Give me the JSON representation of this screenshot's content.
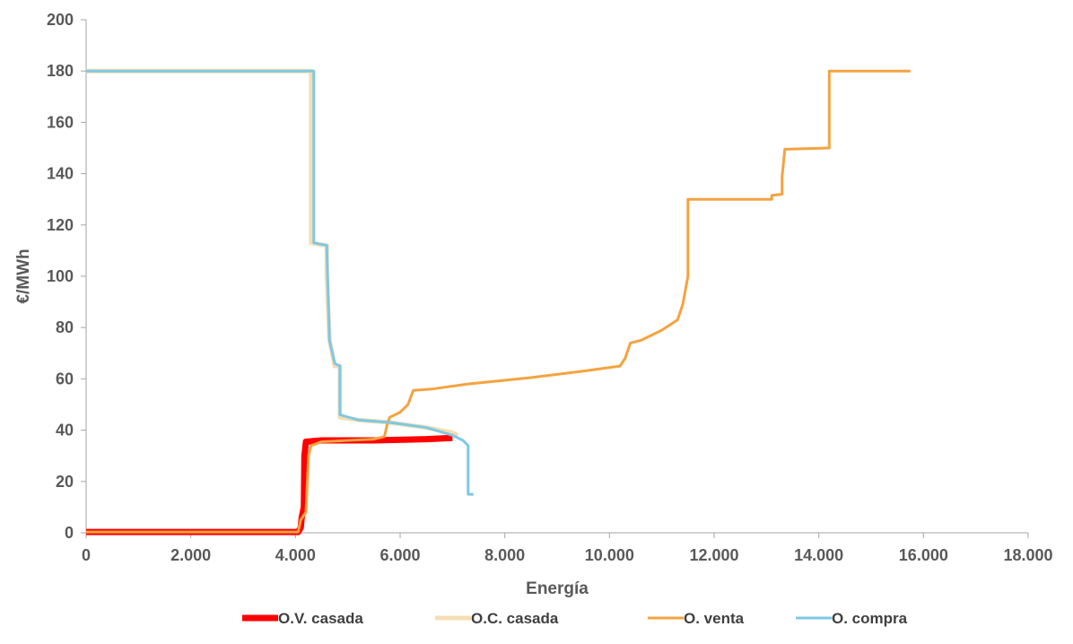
{
  "chart_data": {
    "type": "line",
    "title": "",
    "xlabel": "Energía",
    "ylabel": "€/MWh",
    "xlim": [
      0,
      18000
    ],
    "ylim": [
      0,
      200
    ],
    "x_ticks": [
      0,
      2000,
      4000,
      6000,
      8000,
      10000,
      12000,
      14000,
      16000,
      18000
    ],
    "x_tick_labels": [
      "0",
      "2.000",
      "4.000",
      "6.000",
      "8.000",
      "10.000",
      "12.000",
      "14.000",
      "16.000",
      "18.000"
    ],
    "y_ticks": [
      0,
      20,
      40,
      60,
      80,
      100,
      120,
      140,
      160,
      180,
      200
    ],
    "y_tick_labels": [
      "0",
      "20",
      "40",
      "60",
      "80",
      "100",
      "120",
      "140",
      "160",
      "180",
      "200"
    ],
    "grid": false,
    "legend_position": "bottom",
    "series": [
      {
        "name": "O.V. casada",
        "color": "#ff0000",
        "width": 7,
        "points": [
          [
            0,
            0.3
          ],
          [
            4050,
            0.3
          ],
          [
            4100,
            2
          ],
          [
            4120,
            6
          ],
          [
            4160,
            10
          ],
          [
            4170,
            30
          ],
          [
            4200,
            35.5
          ],
          [
            4500,
            36
          ],
          [
            5500,
            36
          ],
          [
            6500,
            36.5
          ],
          [
            7000,
            37
          ]
        ]
      },
      {
        "name": "O.C. casada",
        "color": "#f5deb3",
        "width": 5,
        "points": [
          [
            0,
            180
          ],
          [
            4300,
            180
          ],
          [
            4300,
            113
          ],
          [
            4600,
            112
          ],
          [
            4600,
            100
          ],
          [
            4650,
            75
          ],
          [
            4750,
            65
          ],
          [
            4850,
            65
          ],
          [
            4850,
            45
          ],
          [
            5200,
            44
          ],
          [
            5800,
            43
          ],
          [
            6500,
            41
          ],
          [
            7000,
            39
          ],
          [
            7100,
            38
          ]
        ]
      },
      {
        "name": "O. venta",
        "color": "#f4a340",
        "width": 3,
        "points": [
          [
            0,
            0.3
          ],
          [
            4050,
            0.3
          ],
          [
            4100,
            5
          ],
          [
            4200,
            8
          ],
          [
            4250,
            30
          ],
          [
            4300,
            34
          ],
          [
            4500,
            35.5
          ],
          [
            5500,
            36.5
          ],
          [
            5700,
            37.5
          ],
          [
            5750,
            42
          ],
          [
            5800,
            45
          ],
          [
            6000,
            47
          ],
          [
            6150,
            50
          ],
          [
            6250,
            55.5
          ],
          [
            6600,
            56
          ],
          [
            7300,
            58
          ],
          [
            8500,
            60.5
          ],
          [
            9500,
            63
          ],
          [
            10200,
            65
          ],
          [
            10300,
            68
          ],
          [
            10400,
            74
          ],
          [
            10600,
            75
          ],
          [
            11000,
            79
          ],
          [
            11300,
            83
          ],
          [
            11400,
            89
          ],
          [
            11500,
            100
          ],
          [
            11500,
            130
          ],
          [
            13100,
            130
          ],
          [
            13100,
            131.5
          ],
          [
            13300,
            132
          ],
          [
            13300,
            139
          ],
          [
            13350,
            149.5
          ],
          [
            14200,
            150
          ],
          [
            14200,
            180
          ],
          [
            15750,
            180
          ]
        ]
      },
      {
        "name": "O. compra",
        "color": "#7ec8e3",
        "width": 3,
        "points": [
          [
            0,
            180
          ],
          [
            4350,
            180
          ],
          [
            4350,
            113
          ],
          [
            4600,
            112
          ],
          [
            4600,
            110
          ],
          [
            4650,
            75
          ],
          [
            4750,
            66
          ],
          [
            4850,
            65
          ],
          [
            4850,
            46
          ],
          [
            5200,
            44
          ],
          [
            5800,
            43
          ],
          [
            6500,
            41
          ],
          [
            7000,
            38
          ],
          [
            7200,
            36
          ],
          [
            7300,
            34
          ],
          [
            7300,
            15
          ],
          [
            7400,
            15
          ]
        ]
      }
    ]
  }
}
